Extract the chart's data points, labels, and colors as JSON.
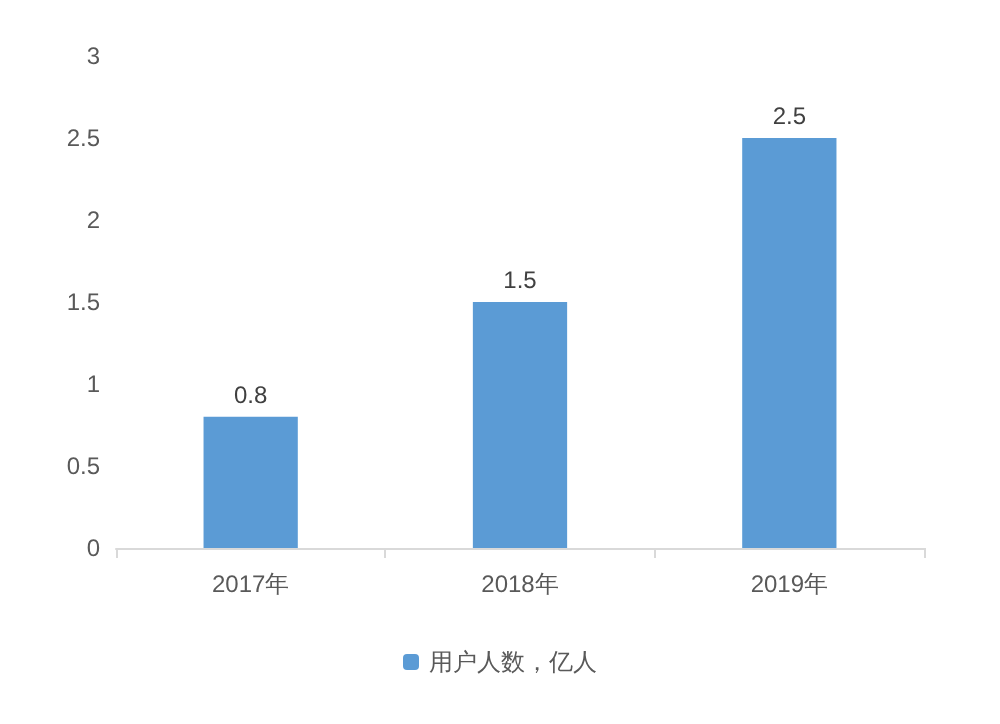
{
  "chart_data": {
    "type": "bar",
    "categories": [
      "2017年",
      "2018年",
      "2019年"
    ],
    "series": [
      {
        "name": "用户人数，亿人",
        "color": "#5b9bd5",
        "values": [
          0.8,
          1.5,
          2.5
        ]
      }
    ],
    "ylim": [
      0,
      3
    ],
    "yticks": [
      0,
      0.5,
      1,
      1.5,
      2,
      2.5,
      3
    ],
    "grid": false,
    "legend": "bottom",
    "data_labels": true
  }
}
